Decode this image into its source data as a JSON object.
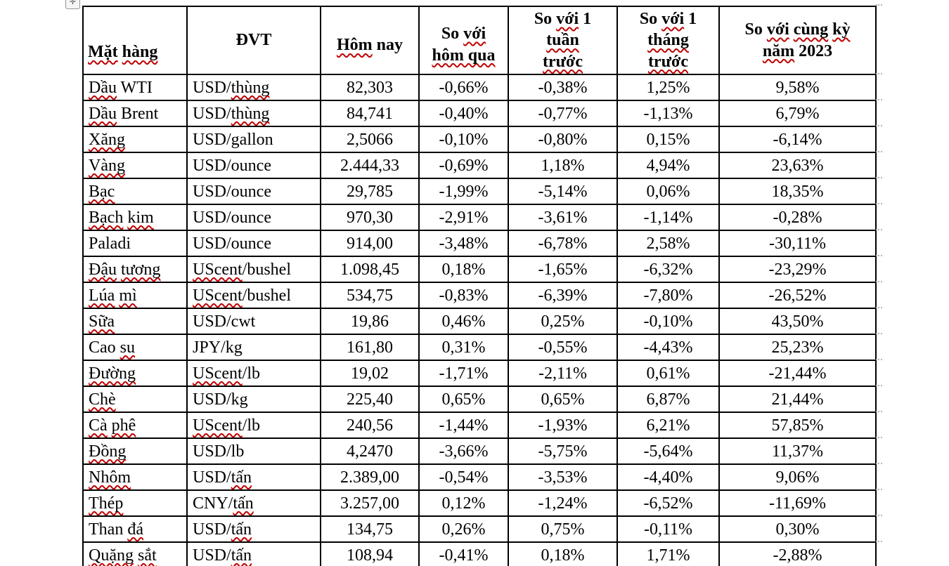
{
  "colors": {
    "page_background": "#ffffff",
    "table_border": "#000000",
    "spell_underline": "#c00000",
    "text": "#000000"
  },
  "icons": {
    "move_handle": {
      "name": "table-move-icon",
      "glyph": "✛"
    }
  },
  "table": {
    "headers": [
      "«Mặt» «hàng»",
      "ĐVT",
      "«Hôm» nay",
      "So «với»\n«hôm qua»",
      "So «với» 1\n«tuần»\n«trước»",
      "So «với» 1\n«tháng»\n«trước»",
      "So «với» «cùng» «kỳ»\n«năm» 2023"
    ],
    "rows": [
      [
        "«Dầu» WTI",
        "USD/«thùng»",
        "82,303",
        "-0,66%",
        "-0,38%",
        "1,25%",
        "9,58%"
      ],
      [
        "«Dầu» Brent",
        "USD/«thùng»",
        "84,741",
        "-0,40%",
        "-0,77%",
        "-1,13%",
        "6,79%"
      ],
      [
        "«Xăng»",
        "USD/gallon",
        "2,5066",
        "-0,10%",
        "-0,80%",
        "0,15%",
        "-6,14%"
      ],
      [
        "«Vàng»",
        "USD/ounce",
        "2.444,33",
        "-0,69%",
        "1,18%",
        "4,94%",
        "23,63%"
      ],
      [
        "«Bạc»",
        "USD/ounce",
        "29,785",
        "-1,99%",
        "-5,14%",
        "0,06%",
        "18,35%"
      ],
      [
        "«Bạch» «kim»",
        "USD/ounce",
        "970,30",
        "-2,91%",
        "-3,61%",
        "-1,14%",
        "-0,28%"
      ],
      [
        "Paladi",
        "USD/ounce",
        "914,00",
        "-3,48%",
        "-6,78%",
        "2,58%",
        "-30,11%"
      ],
      [
        "«Đậu» «tương»",
        "«UScent»/bushel",
        "1.098,45",
        "0,18%",
        "-1,65%",
        "-6,32%",
        "-23,29%"
      ],
      [
        "«Lúa» «mì»",
        "«UScent»/bushel",
        "534,75",
        "-0,83%",
        "-6,39%",
        "-7,80%",
        "-26,52%"
      ],
      [
        "«Sữa»",
        "USD/cwt",
        "19,86",
        "0,46%",
        "0,25%",
        "-0,10%",
        "43,50%"
      ],
      [
        "Cao «su»",
        "JPY/kg",
        "161,80",
        "0,31%",
        "-0,55%",
        "-4,43%",
        "25,23%"
      ],
      [
        "«Đường»",
        "«UScent»/lb",
        "19,02",
        "-1,71%",
        "-2,11%",
        "0,61%",
        "-21,44%"
      ],
      [
        "«Chè»",
        "USD/kg",
        "225,40",
        "0,65%",
        "0,65%",
        "6,87%",
        "21,44%"
      ],
      [
        "«Cà» «phê»",
        "«UScent»/lb",
        "240,56",
        "-1,44%",
        "-1,93%",
        "6,21%",
        "57,85%"
      ],
      [
        "«Đồng»",
        "USD/lb",
        "4,2470",
        "-3,66%",
        "-5,75%",
        "-5,64%",
        "11,37%"
      ],
      [
        "«Nhôm»",
        "USD/«tấn»",
        "2.389,00",
        "-0,54%",
        "-3,53%",
        "-4,40%",
        "9,06%"
      ],
      [
        "«Thép»",
        "CNY/«tấn»",
        "3.257,00",
        "0,12%",
        "-1,24%",
        "-6,52%",
        "-11,69%"
      ],
      [
        "Than «đá»",
        "USD/«tấn»",
        "134,75",
        "0,26%",
        "0,75%",
        "-0,11%",
        "0,30%"
      ],
      [
        "«Quặng» «sắt»",
        "USD/«tấn»",
        "108,94",
        "-0,41%",
        "0,18%",
        "1,71%",
        "-2,88%"
      ]
    ]
  }
}
